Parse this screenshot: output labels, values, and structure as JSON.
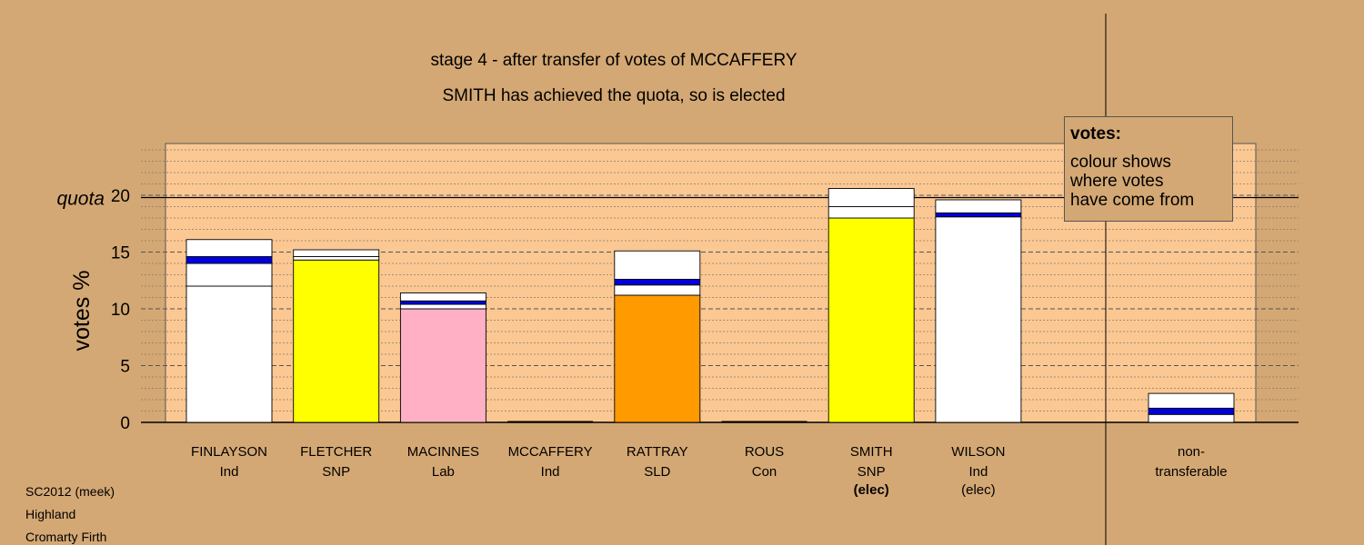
{
  "titles": {
    "line1": "stage 4 - after transfer of votes of MCCAFFERY",
    "line2": "SMITH has achieved the quota, so is elected"
  },
  "legend": {
    "heading": "votes:",
    "lines": [
      "colour shows",
      "where votes",
      "have come from"
    ]
  },
  "footer": {
    "line1": "SC2012 (meek)",
    "line2": "Highland",
    "line3": "Cromarty Firth"
  },
  "chart_data": {
    "type": "bar",
    "ylabel": "votes %",
    "ylim": [
      0,
      24.5
    ],
    "yticks": [
      0,
      5,
      10,
      15,
      20
    ],
    "quota": 19.8,
    "quota_label": "quota",
    "grid": "dashed major, dotted minor",
    "legend_position": "top-right",
    "colors": {
      "background": "#d4a874",
      "plot_area": "#fbc893",
      "Ind": "#ffffff",
      "SNP": "#ffff00",
      "Lab": "#ffb0c4",
      "SLD": "#ff9a00",
      "Con": "#0000dd",
      "transfer_band": "#0000dd"
    },
    "categories": [
      {
        "name": "FINLAYSON",
        "party": "Ind",
        "status": "",
        "segments": [
          {
            "from": "Ind",
            "value": 12.0
          },
          {
            "from": "Ind",
            "value": 2.0
          },
          {
            "from": "Con",
            "value": 0.6
          },
          {
            "from": "Ind",
            "value": 1.5
          }
        ]
      },
      {
        "name": "FLETCHER",
        "party": "SNP",
        "status": "",
        "segments": [
          {
            "from": "SNP",
            "value": 14.3
          },
          {
            "from": "Ind",
            "value": 0.3
          },
          {
            "from": "Ind",
            "value": 0.6
          }
        ]
      },
      {
        "name": "MACINNES",
        "party": "Lab",
        "status": "",
        "segments": [
          {
            "from": "Lab",
            "value": 10.0
          },
          {
            "from": "Ind",
            "value": 0.4
          },
          {
            "from": "Con",
            "value": 0.3
          },
          {
            "from": "Ind",
            "value": 0.7
          }
        ]
      },
      {
        "name": "MCCAFFERY",
        "party": "Ind",
        "status": "",
        "segments": []
      },
      {
        "name": "RATTRAY",
        "party": "SLD",
        "status": "",
        "segments": [
          {
            "from": "SLD",
            "value": 11.2
          },
          {
            "from": "Ind",
            "value": 0.9
          },
          {
            "from": "Con",
            "value": 0.5
          },
          {
            "from": "Ind",
            "value": 2.5
          }
        ]
      },
      {
        "name": "ROUS",
        "party": "Con",
        "status": "",
        "segments": []
      },
      {
        "name": "SMITH",
        "party": "SNP",
        "status": "(elec)",
        "segments": [
          {
            "from": "SNP",
            "value": 18.0
          },
          {
            "from": "Ind",
            "value": 1.0
          },
          {
            "from": "Ind",
            "value": 1.6
          }
        ]
      },
      {
        "name": "WILSON",
        "party": "Ind",
        "status": "(elec)",
        "segments": [
          {
            "from": "Ind",
            "value": 18.1
          },
          {
            "from": "Con",
            "value": 0.35
          },
          {
            "from": "Ind",
            "value": 1.15
          }
        ]
      }
    ],
    "non_transferable": {
      "label_line1": "non-",
      "label_line2": "transferable",
      "segments": [
        {
          "from": "Ind",
          "value": 0.7
        },
        {
          "from": "Con",
          "value": 0.55
        },
        {
          "from": "Ind",
          "value": 1.3
        }
      ]
    }
  }
}
